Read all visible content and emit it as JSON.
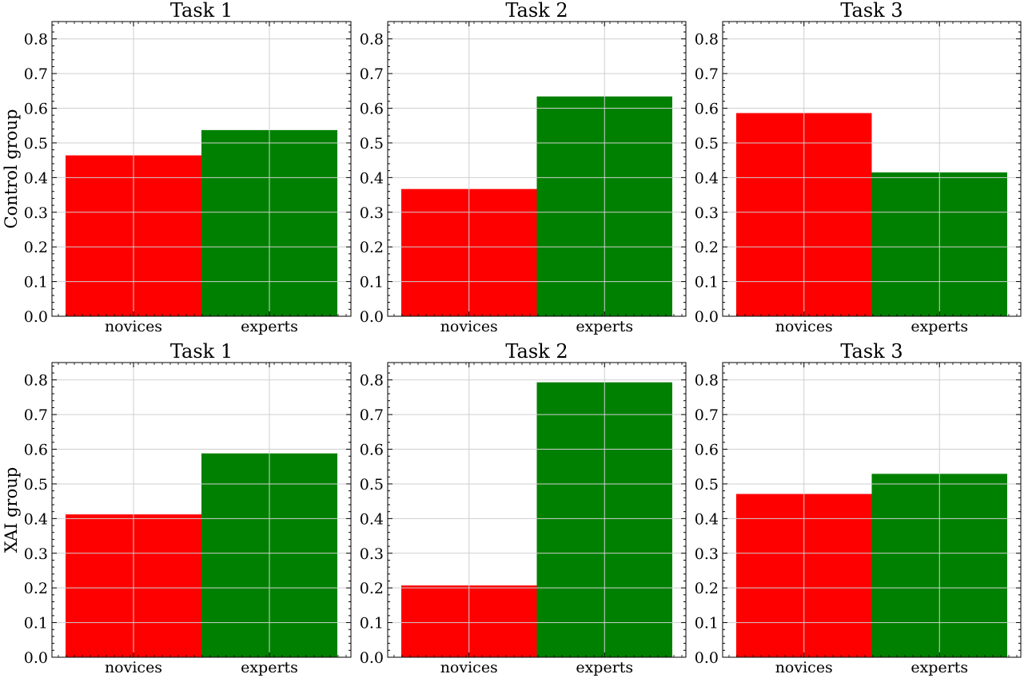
{
  "chart_data": [
    {
      "type": "bar",
      "row_label": "Control group",
      "title": "Task 1",
      "categories": [
        "novices",
        "experts"
      ],
      "values": [
        0.464,
        0.537
      ],
      "ylim": [
        0,
        0.85
      ],
      "yticks": [
        "0.0",
        "0.1",
        "0.2",
        "0.3",
        "0.4",
        "0.5",
        "0.6",
        "0.7",
        "0.8"
      ],
      "grid": true
    },
    {
      "type": "bar",
      "row_label": "",
      "title": "Task 2",
      "categories": [
        "novices",
        "experts"
      ],
      "values": [
        0.367,
        0.634
      ],
      "ylim": [
        0,
        0.85
      ],
      "yticks": [
        "0.0",
        "0.1",
        "0.2",
        "0.3",
        "0.4",
        "0.5",
        "0.6",
        "0.7",
        "0.8"
      ],
      "grid": true
    },
    {
      "type": "bar",
      "row_label": "",
      "title": "Task 3",
      "categories": [
        "novices",
        "experts"
      ],
      "values": [
        0.586,
        0.415
      ],
      "ylim": [
        0,
        0.85
      ],
      "yticks": [
        "0.0",
        "0.1",
        "0.2",
        "0.3",
        "0.4",
        "0.5",
        "0.6",
        "0.7",
        "0.8"
      ],
      "grid": true
    },
    {
      "type": "bar",
      "row_label": "XAI group",
      "title": "Task 1",
      "categories": [
        "novices",
        "experts"
      ],
      "values": [
        0.412,
        0.588
      ],
      "ylim": [
        0,
        0.85
      ],
      "yticks": [
        "0.0",
        "0.1",
        "0.2",
        "0.3",
        "0.4",
        "0.5",
        "0.6",
        "0.7",
        "0.8"
      ],
      "grid": true
    },
    {
      "type": "bar",
      "row_label": "",
      "title": "Task 2",
      "categories": [
        "novices",
        "experts"
      ],
      "values": [
        0.207,
        0.793
      ],
      "ylim": [
        0,
        0.85
      ],
      "yticks": [
        "0.0",
        "0.1",
        "0.2",
        "0.3",
        "0.4",
        "0.5",
        "0.6",
        "0.7",
        "0.8"
      ],
      "grid": true
    },
    {
      "type": "bar",
      "row_label": "",
      "title": "Task 3",
      "categories": [
        "novices",
        "experts"
      ],
      "values": [
        0.471,
        0.529
      ],
      "ylim": [
        0,
        0.85
      ],
      "yticks": [
        "0.0",
        "0.1",
        "0.2",
        "0.3",
        "0.4",
        "0.5",
        "0.6",
        "0.7",
        "0.8"
      ],
      "grid": true
    }
  ],
  "colors": {
    "novices": "#ff0000",
    "experts": "#008000",
    "grid": "#cfcfcf",
    "axes": "#000000"
  }
}
